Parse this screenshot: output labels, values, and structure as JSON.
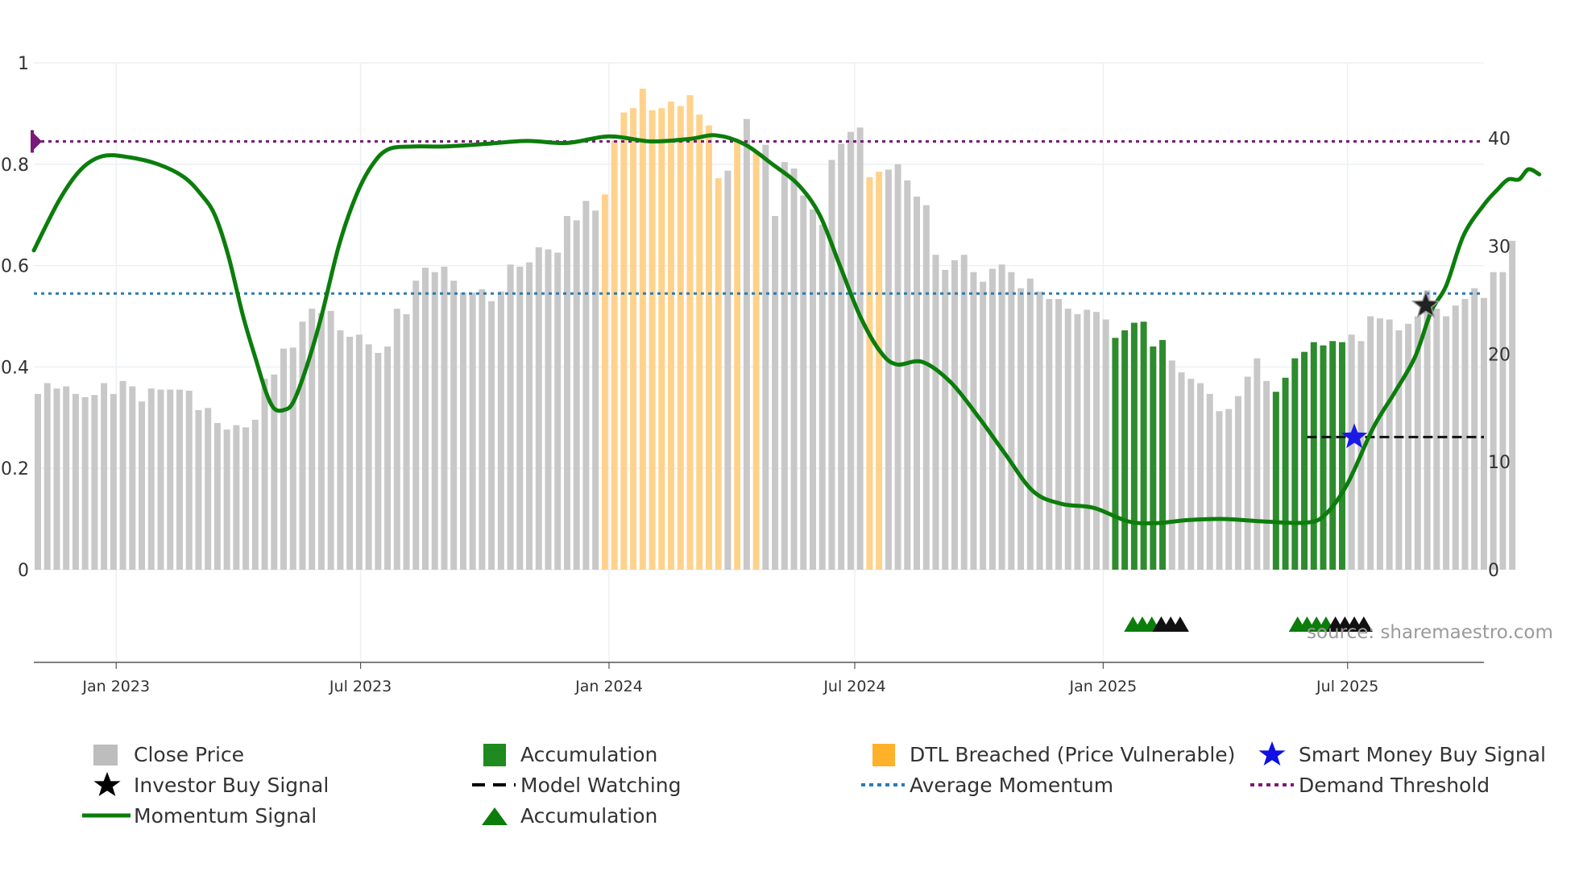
{
  "chart_data": {
    "type": "bar",
    "title": "",
    "source_note": "source: sharemaestro.com",
    "x_range": [
      "2022-11-01",
      "2025-10-10"
    ],
    "x_ticks": [
      {
        "date": "2023-01-01",
        "label": "Jan 2023"
      },
      {
        "date": "2023-07-01",
        "label": "Jul 2023"
      },
      {
        "date": "2024-01-01",
        "label": "Jan 2024"
      },
      {
        "date": "2024-07-01",
        "label": "Jul 2024"
      },
      {
        "date": "2025-01-01",
        "label": "Jan 2025"
      },
      {
        "date": "2025-07-01",
        "label": "Jul 2025"
      }
    ],
    "y_left": {
      "range": [
        0,
        1
      ],
      "ticks": [
        {
          "v": 0,
          "label": "0"
        },
        {
          "v": 0.2,
          "label": "0.2"
        },
        {
          "v": 0.4,
          "label": "0.4"
        },
        {
          "v": 0.6,
          "label": "0.6"
        },
        {
          "v": 0.8,
          "label": "0.8"
        },
        {
          "v": 1,
          "label": "1"
        }
      ]
    },
    "y_right": {
      "range": [
        0,
        47
      ],
      "ticks": [
        {
          "v": 0,
          "label": "0"
        },
        {
          "v": 10,
          "label": "10"
        },
        {
          "v": 20,
          "label": "20"
        },
        {
          "v": 30,
          "label": "30"
        },
        {
          "v": 40,
          "label": "40"
        }
      ]
    },
    "close_price": {
      "name": "Close Price",
      "start_date": "2022-11-01",
      "interval_days": 7,
      "values": [
        16.3,
        17.3,
        16.8,
        17.0,
        16.3,
        16.0,
        16.2,
        17.3,
        16.3,
        17.5,
        17.0,
        15.6,
        16.8,
        16.7,
        16.7,
        16.7,
        16.6,
        14.8,
        15.0,
        13.6,
        13.0,
        13.4,
        13.2,
        13.9,
        17.7,
        18.1,
        20.5,
        20.6,
        23.0,
        24.2,
        23.8,
        24.0,
        22.2,
        21.6,
        21.8,
        20.9,
        20.1,
        20.7,
        24.2,
        23.7,
        26.8,
        28.0,
        27.6,
        28.1,
        26.8,
        25.7,
        25.7,
        26.0,
        24.9,
        25.8,
        28.3,
        28.1,
        28.5,
        29.9,
        29.7,
        29.4,
        32.8,
        32.4,
        34.2,
        33.3,
        34.8,
        39.8,
        42.4,
        42.8,
        44.6,
        42.6,
        42.8,
        43.4,
        43.0,
        44.0,
        42.2,
        41.2,
        36.3,
        37.0,
        39.8,
        41.8,
        38.7,
        39.4,
        32.8,
        37.8,
        37.2,
        34.7,
        33.4,
        32.0,
        38.0,
        39.5,
        40.6,
        41.0,
        36.4,
        36.9,
        37.1,
        37.6,
        36.1,
        34.6,
        33.8,
        29.2,
        27.8,
        28.7,
        29.2,
        27.6,
        26.7,
        27.9,
        28.3,
        27.6,
        26.1,
        27.0,
        25.8,
        25.1,
        25.1,
        24.2,
        23.7,
        24.1,
        23.9,
        23.2,
        21.5,
        22.2,
        22.9,
        23.0,
        20.7,
        21.3,
        19.4,
        18.3,
        17.7,
        17.3,
        16.3,
        14.7,
        14.9,
        16.1,
        17.9,
        19.6,
        17.5,
        16.5,
        17.8,
        19.6,
        20.2,
        21.1,
        20.8,
        21.2,
        21.1,
        21.8,
        21.2,
        23.5,
        23.3,
        23.2,
        22.2,
        22.8,
        23.5,
        25.9,
        24.2,
        23.5,
        24.5,
        25.1,
        26.1,
        25.2,
        27.6,
        27.6,
        30.5
      ],
      "dtl_breached_ranges": [
        [
          60,
          72
        ],
        [
          74,
          74
        ],
        [
          76,
          76
        ],
        [
          88,
          89
        ]
      ],
      "accumulation_ranges": [
        [
          114,
          119
        ],
        [
          131,
          138
        ]
      ]
    },
    "momentum_signal": {
      "name": "Momentum Signal",
      "axis": "left",
      "points": [
        [
          "2022-11-01",
          0.63
        ],
        [
          "2022-11-20",
          0.73
        ],
        [
          "2022-12-06",
          0.79
        ],
        [
          "2022-12-22",
          0.816
        ],
        [
          "2023-01-10",
          0.814
        ],
        [
          "2023-02-01",
          0.8
        ],
        [
          "2023-02-20",
          0.775
        ],
        [
          "2023-03-05",
          0.74
        ],
        [
          "2023-03-15",
          0.7
        ],
        [
          "2023-03-25",
          0.62
        ],
        [
          "2023-04-05",
          0.5
        ],
        [
          "2023-04-15",
          0.41
        ],
        [
          "2023-04-22",
          0.35
        ],
        [
          "2023-04-28",
          0.318
        ],
        [
          "2023-05-05",
          0.315
        ],
        [
          "2023-05-12",
          0.33
        ],
        [
          "2023-05-22",
          0.4
        ],
        [
          "2023-06-02",
          0.5
        ],
        [
          "2023-06-15",
          0.64
        ],
        [
          "2023-06-28",
          0.74
        ],
        [
          "2023-07-10",
          0.8
        ],
        [
          "2023-07-22",
          0.83
        ],
        [
          "2023-08-10",
          0.835
        ],
        [
          "2023-09-01",
          0.835
        ],
        [
          "2023-10-01",
          0.84
        ],
        [
          "2023-11-01",
          0.846
        ],
        [
          "2023-12-01",
          0.842
        ],
        [
          "2024-01-01",
          0.855
        ],
        [
          "2024-02-01",
          0.845
        ],
        [
          "2024-03-01",
          0.85
        ],
        [
          "2024-03-20",
          0.857
        ],
        [
          "2024-04-10",
          0.84
        ],
        [
          "2024-05-01",
          0.8
        ],
        [
          "2024-05-20",
          0.76
        ],
        [
          "2024-06-05",
          0.7
        ],
        [
          "2024-06-20",
          0.6
        ],
        [
          "2024-07-05",
          0.5
        ],
        [
          "2024-07-20",
          0.43
        ],
        [
          "2024-08-01",
          0.405
        ],
        [
          "2024-08-20",
          0.41
        ],
        [
          "2024-09-10",
          0.37
        ],
        [
          "2024-10-01",
          0.3
        ],
        [
          "2024-10-20",
          0.23
        ],
        [
          "2024-11-10",
          0.155
        ],
        [
          "2024-12-01",
          0.13
        ],
        [
          "2024-12-25",
          0.122
        ],
        [
          "2025-01-20",
          0.095
        ],
        [
          "2025-02-10",
          0.092
        ],
        [
          "2025-03-05",
          0.098
        ],
        [
          "2025-04-01",
          0.1
        ],
        [
          "2025-05-01",
          0.095
        ],
        [
          "2025-06-01",
          0.093
        ],
        [
          "2025-06-15",
          0.11
        ],
        [
          "2025-07-01",
          0.17
        ],
        [
          "2025-07-20",
          0.28
        ],
        [
          "2025-08-05",
          0.35
        ],
        [
          "2025-08-20",
          0.42
        ],
        [
          "2025-09-01",
          0.51
        ],
        [
          "2025-09-12",
          0.56
        ],
        [
          "2025-09-25",
          0.66
        ],
        [
          "2025-10-10",
          0.72
        ],
        [
          "2025-10-20",
          0.75
        ],
        [
          "2025-10-28",
          0.77
        ],
        [
          "2025-11-05",
          0.77
        ],
        [
          "2025-11-12",
          0.79
        ],
        [
          "2025-11-20",
          0.78
        ]
      ]
    },
    "average_momentum": {
      "name": "Average Momentum",
      "value": 0.545
    },
    "demand_threshold": {
      "name": "Demand Threshold",
      "value": 0.845
    },
    "model_watching": {
      "name": "Model Watching",
      "value_price": 12.3,
      "start_date": "2025-06-01",
      "end_date": "2025-10-10"
    },
    "smart_money_buy_signal": {
      "name": "Smart Money Buy Signal",
      "date": "2025-07-06",
      "price": 12.3
    },
    "investor_buy_signal": {
      "name": "Investor Buy Signal",
      "date": "2025-08-28",
      "price": 24.5
    },
    "accumulation_markers": {
      "name": "Accumulation",
      "green_dates": [
        "2025-01-23",
        "2025-01-30",
        "2025-02-06",
        "2025-02-13",
        "2025-05-25",
        "2025-06-01",
        "2025-06-08",
        "2025-06-15"
      ],
      "black_dates": [
        "2025-02-13",
        "2025-02-20",
        "2025-02-27",
        "2025-06-22",
        "2025-06-29",
        "2025-07-06",
        "2025-07-13"
      ]
    },
    "colors": {
      "close": "#c8c8c8",
      "accumulation": "#2e8b2e",
      "dtl": "#ffd28c",
      "momentum": "#0b7d0b",
      "avg": "#2b7bb0",
      "threshold": "#7a1a7a",
      "smart_money": "#1a1ae6"
    }
  },
  "legend": [
    {
      "key": "close",
      "label": "Close Price"
    },
    {
      "key": "accum_bar",
      "label": "Accumulation"
    },
    {
      "key": "dtl",
      "label": "DTL Breached (Price Vulnerable)"
    },
    {
      "key": "smart",
      "label": "Smart Money Buy Signal"
    },
    {
      "key": "investor",
      "label": "Investor Buy Signal"
    },
    {
      "key": "watch",
      "label": "Model Watching"
    },
    {
      "key": "avg",
      "label": "Average Momentum"
    },
    {
      "key": "threshold",
      "label": "Demand Threshold"
    },
    {
      "key": "momentum",
      "label": "Momentum Signal"
    },
    {
      "key": "accum_tri",
      "label": "Accumulation"
    }
  ]
}
